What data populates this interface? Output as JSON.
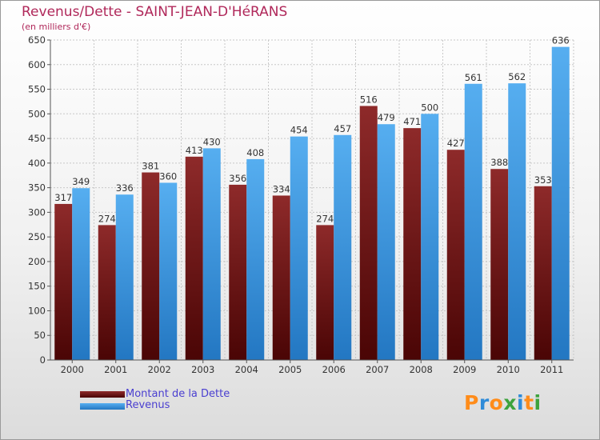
{
  "title": "Revenus/Dette - SAINT-JEAN-D'HéRANS",
  "subtitle": "(en milliers d'€)",
  "colors": {
    "debt": "#7d1818",
    "debt_dark": "#4a0505",
    "revenue": "#4ba3e8",
    "revenue_dark": "#1f73bd",
    "title": "#b0285a",
    "legend_text": "#4a3fd0"
  },
  "legend": {
    "debt_label": "Montant de la Dette",
    "revenue_label": "Revenus"
  },
  "logo": {
    "text": "Proxiti",
    "letters": [
      {
        "ch": "P",
        "color": "#ff8c1a"
      },
      {
        "ch": "r",
        "color": "#2e8bd8"
      },
      {
        "ch": "o",
        "color": "#ff8c1a"
      },
      {
        "ch": "x",
        "color": "#3da33d"
      },
      {
        "ch": "i",
        "color": "#2e8bd8"
      },
      {
        "ch": "t",
        "color": "#ff8c1a"
      },
      {
        "ch": "i",
        "color": "#3da33d"
      }
    ]
  },
  "chart_data": {
    "type": "bar",
    "categories": [
      "2000",
      "2001",
      "2002",
      "2003",
      "2004",
      "2005",
      "2006",
      "2007",
      "2008",
      "2009",
      "2010",
      "2011"
    ],
    "series": [
      {
        "name": "Montant de la Dette",
        "values": [
          317,
          274,
          381,
          413,
          356,
          334,
          274,
          516,
          471,
          427,
          388,
          353
        ]
      },
      {
        "name": "Revenus",
        "values": [
          349,
          336,
          360,
          430,
          408,
          454,
          457,
          479,
          500,
          561,
          562,
          636
        ]
      }
    ],
    "ylim": [
      0,
      650
    ],
    "yticks": [
      0,
      50,
      100,
      150,
      200,
      250,
      300,
      350,
      400,
      450,
      500,
      550,
      600,
      650
    ],
    "grid": true,
    "legend_position": "bottom-left"
  }
}
